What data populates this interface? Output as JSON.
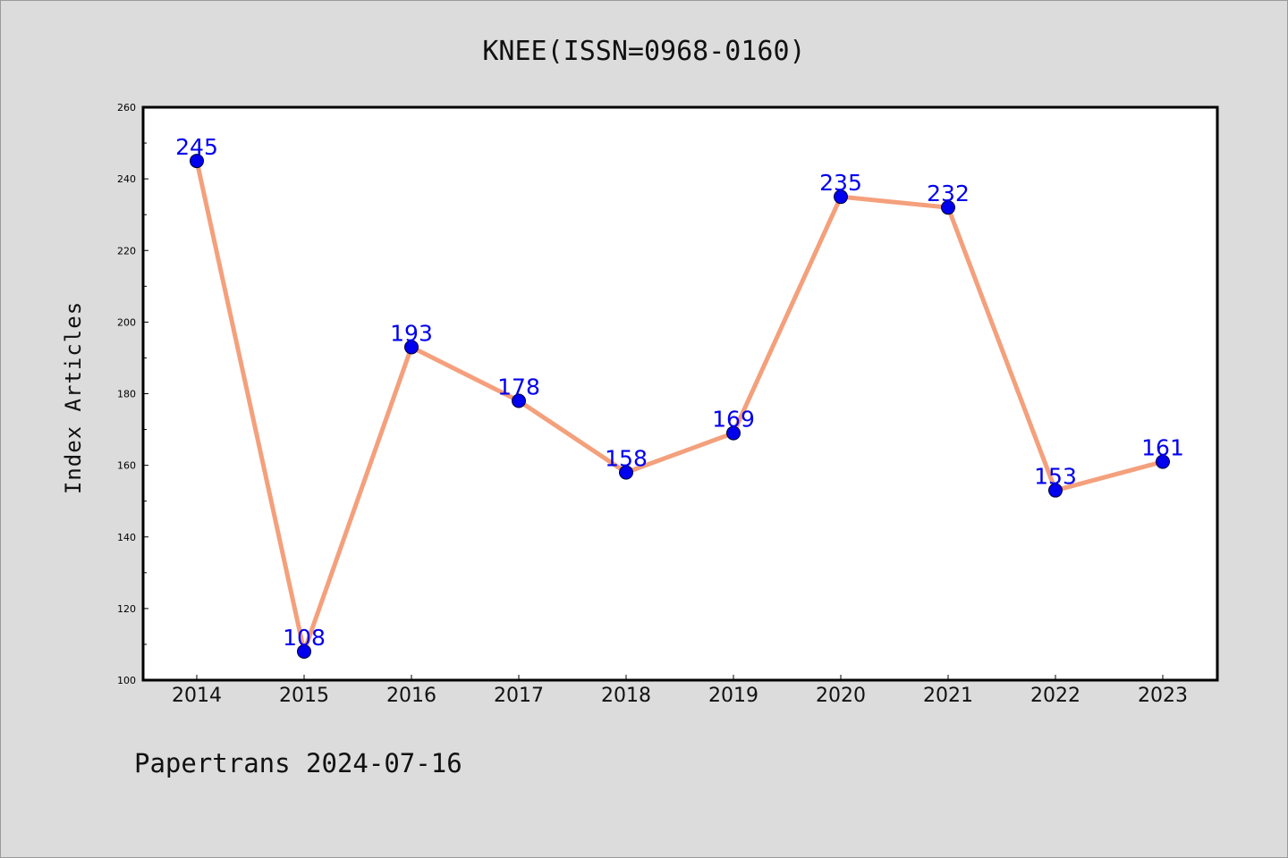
{
  "chart_data": {
    "type": "line",
    "title": "KNEE(ISSN=0968-0160)",
    "ylabel": "Index Articles",
    "xlabel": "",
    "categories": [
      "2014",
      "2015",
      "2016",
      "2017",
      "2018",
      "2019",
      "2020",
      "2021",
      "2022",
      "2023"
    ],
    "series": [
      {
        "values": [
          245,
          108,
          193,
          178,
          158,
          169,
          235,
          232,
          153,
          161
        ]
      }
    ],
    "ylim": [
      100,
      260
    ],
    "yticks": [
      100,
      120,
      140,
      160,
      180,
      200,
      220,
      240,
      260
    ],
    "data_labels": true,
    "grid": false,
    "colors": {
      "line": "#f4a07c",
      "marker": "#0000ee",
      "label": "#0000ee",
      "background": "#dcdcdc",
      "plot_background": "#ffffff"
    }
  },
  "footer": "Papertrans 2024-07-16"
}
